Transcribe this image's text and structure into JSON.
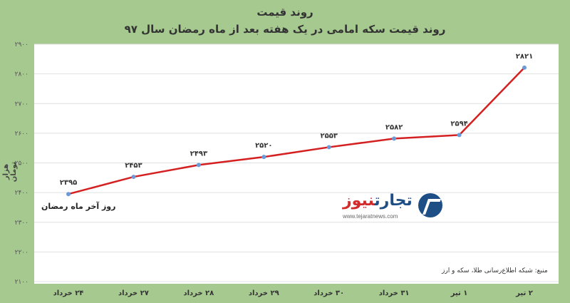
{
  "chart_data": {
    "type": "line",
    "title": "روند قیمت",
    "subtitle": "روند قیمت سکه امامی در یک هفته بعد از ماه رمضان سال ۹۷",
    "ylabel": "هزار تومان",
    "xlabel": "",
    "ylim": [
      2100,
      2900
    ],
    "yticks": [
      2100,
      2200,
      2300,
      2400,
      2500,
      2600,
      2700,
      2800,
      2900
    ],
    "ytick_labels": [
      "۲۱۰۰",
      "۲۲۰۰",
      "۲۳۰۰",
      "۲۴۰۰",
      "۲۵۰۰",
      "۲۶۰۰",
      "۲۷۰۰",
      "۲۸۰۰",
      "۲۹۰۰"
    ],
    "categories": [
      "۲۴ خرداد",
      "۲۷ خرداد",
      "۲۸ خرداد",
      "۲۹ خرداد",
      "۳۰ خرداد",
      "۳۱ خرداد",
      "۱ تیر",
      "۲ تیر"
    ],
    "values": [
      2395,
      2453,
      2493,
      2520,
      2553,
      2582,
      2594,
      2821
    ],
    "data_labels": [
      "۲۳۹۵",
      "۲۴۵۳",
      "۲۴۹۳",
      "۲۵۲۰",
      "۲۵۵۳",
      "۲۵۸۲",
      "۲۵۹۴",
      "۲۸۲۱"
    ],
    "line_color": "#d42020",
    "marker_color": "#6a9bd8",
    "grid": true,
    "annotation": "روز آخر ماه رمضان",
    "source": "منبع: شبکه اطلاع‌رسانی طلا، سکه و ارز"
  },
  "logo": {
    "name_blue": "تجارت",
    "name_red": "نیوز",
    "url": "www.tejaratnews.com"
  },
  "colors": {
    "background": "#a6c98f",
    "plot_background": "#ffffff",
    "grid": "#e0e0e0"
  }
}
